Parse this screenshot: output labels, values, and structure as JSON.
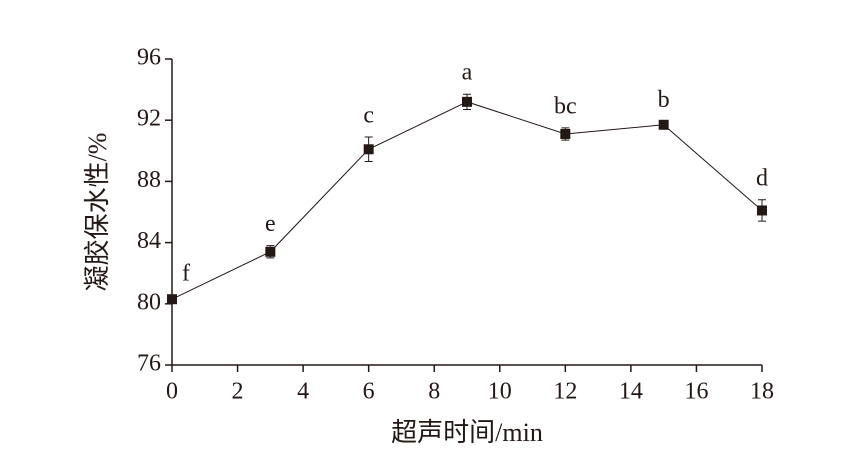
{
  "chart_data": {
    "type": "line",
    "xlabel": "超声时间/min",
    "ylabel": "凝胶保水性/%",
    "x": [
      0,
      3,
      6,
      9,
      12,
      15,
      18
    ],
    "values": [
      80.3,
      83.4,
      90.1,
      93.2,
      91.1,
      91.7,
      86.1
    ],
    "errors": [
      0.2,
      0.4,
      0.8,
      0.5,
      0.4,
      0.2,
      0.7
    ],
    "point_labels": [
      "f",
      "e",
      "c",
      "a",
      "bc",
      "b",
      "d"
    ],
    "color": "#231815",
    "xlim": [
      0,
      18
    ],
    "xticks": [
      0,
      2,
      4,
      6,
      8,
      10,
      12,
      14,
      16,
      18
    ],
    "ylim": [
      76,
      96
    ],
    "yticks": [
      76,
      80,
      84,
      88,
      92,
      96
    ]
  }
}
